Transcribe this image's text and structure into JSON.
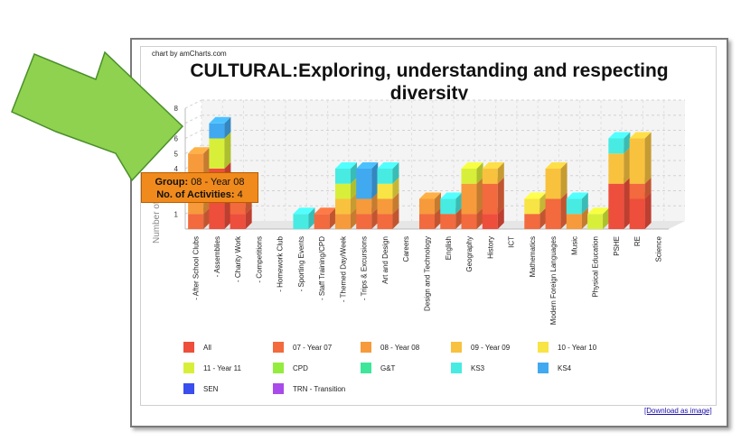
{
  "credit": "chart by amCharts.com",
  "download_label": "[Download as image]",
  "tooltip": {
    "group_label": "Group:",
    "group_value": "08 - Year 08",
    "count_label": "No. of Activities:",
    "count_value": "4"
  },
  "colors": {
    "All": "#ee4e3c",
    "07 - Year 07": "#f26a3d",
    "08 - Year 08": "#f69a3c",
    "09 - Year 09": "#f8c23f",
    "10 - Year 10": "#f8e444",
    "11 - Year 11": "#d8ef3a",
    "CPD": "#94ec3e",
    "G&T": "#3ee69a",
    "KS3": "#47ebe2",
    "KS4": "#41a9f0",
    "SEN": "#3a4ded",
    "TRN - Transition": "#a84bea",
    "arrow": "#8fd24f"
  },
  "chart_data": {
    "type": "bar",
    "stacked": true,
    "three_d": true,
    "title": "CULTURAL:Exploring, understanding and respecting diversity",
    "ylabel": "Number of",
    "ylim": [
      0,
      8
    ],
    "yticks": [
      1,
      4,
      5,
      6,
      7,
      8
    ],
    "grid": true,
    "legend_position": "bottom",
    "categories": [
      "- After School Clubs",
      "- Assemblies",
      "- Charity Work",
      "- Competitions",
      "- Homework Club",
      "- Sporting Events",
      "- Staff Training/CPD",
      "- Themed Day/Week",
      "- Trips & Excursions",
      "Art and Design",
      "Careers",
      "Design and Technology",
      "English",
      "Geography",
      "History",
      "ICT",
      "Mathematics",
      "Modern Foreign Languages",
      "Music",
      "Physical Education",
      "PSHE",
      "RE",
      "Science"
    ],
    "series": [
      {
        "name": "All",
        "values": [
          0,
          4,
          1,
          0,
          0,
          0,
          0,
          0,
          0,
          0,
          0,
          0,
          0,
          0,
          1,
          0,
          0,
          0,
          0,
          0,
          3,
          2,
          0
        ]
      },
      {
        "name": "07 - Year 07",
        "values": [
          1,
          0,
          1,
          0,
          0,
          0,
          1,
          0,
          1,
          1,
          0,
          1,
          1,
          1,
          2,
          0,
          1,
          2,
          0,
          0,
          0,
          1,
          0
        ]
      },
      {
        "name": "08 - Year 08",
        "values": [
          4,
          0,
          0,
          0,
          0,
          0,
          0,
          1,
          1,
          1,
          0,
          1,
          0,
          2,
          0,
          0,
          0,
          0,
          1,
          0,
          0,
          0,
          0
        ]
      },
      {
        "name": "09 - Year 09",
        "values": [
          0,
          0,
          0,
          0,
          0,
          0,
          0,
          1,
          0,
          0,
          0,
          0,
          0,
          0,
          1,
          0,
          0,
          2,
          0,
          0,
          2,
          3,
          0
        ]
      },
      {
        "name": "10 - Year 10",
        "values": [
          0,
          0,
          0,
          0,
          0,
          0,
          0,
          0,
          0,
          1,
          0,
          0,
          0,
          0,
          0,
          0,
          1,
          0,
          0,
          0,
          0,
          0,
          0
        ]
      },
      {
        "name": "11 - Year 11",
        "values": [
          0,
          2,
          1,
          0,
          0,
          0,
          0,
          1,
          0,
          0,
          0,
          0,
          0,
          1,
          0,
          0,
          0,
          0,
          0,
          1,
          0,
          0,
          0
        ]
      },
      {
        "name": "CPD",
        "values": [
          0,
          0,
          0,
          0,
          0,
          0,
          0,
          0,
          0,
          0,
          0,
          0,
          0,
          0,
          0,
          0,
          0,
          0,
          0,
          0,
          0,
          0,
          0
        ]
      },
      {
        "name": "G&T",
        "values": [
          0,
          0,
          0,
          0,
          0,
          0,
          0,
          0,
          0,
          0,
          0,
          0,
          0,
          0,
          0,
          0,
          0,
          0,
          0,
          0,
          0,
          0,
          0
        ]
      },
      {
        "name": "KS3",
        "values": [
          0,
          0,
          0,
          0,
          0,
          1,
          0,
          1,
          0,
          1,
          0,
          0,
          1,
          0,
          0,
          0,
          0,
          0,
          1,
          0,
          1,
          0,
          0
        ]
      },
      {
        "name": "KS4",
        "values": [
          0,
          1,
          0,
          0,
          0,
          0,
          0,
          0,
          2,
          0,
          0,
          0,
          0,
          0,
          0,
          0,
          0,
          0,
          0,
          0,
          0,
          0,
          0
        ]
      },
      {
        "name": "SEN",
        "values": [
          0,
          0,
          0,
          0,
          0,
          0,
          0,
          0,
          0,
          0,
          0,
          0,
          0,
          0,
          0,
          0,
          0,
          0,
          0,
          0,
          0,
          0,
          0
        ]
      },
      {
        "name": "TRN - Transition",
        "values": [
          0,
          0,
          0,
          0,
          0,
          0,
          0,
          0,
          0,
          0,
          0,
          0,
          0,
          0,
          0,
          0,
          0,
          0,
          0,
          0,
          0,
          0,
          0
        ]
      }
    ]
  }
}
